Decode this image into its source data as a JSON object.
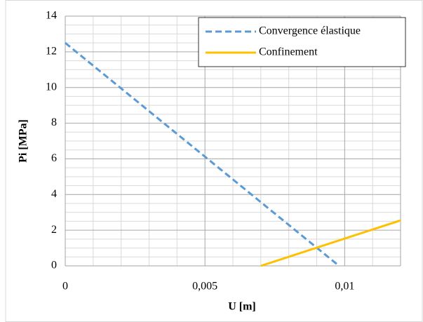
{
  "chart_data": {
    "type": "line",
    "x_label": "U [m]",
    "y_label": "Pi [MPa]",
    "xlim": [
      0,
      0.012
    ],
    "xticks": [
      0,
      {
        "value": 0.005,
        "label": "0,005"
      },
      {
        "value": 0.01,
        "label": "0,01"
      }
    ],
    "ylim": [
      0,
      14
    ],
    "yticks": [
      0,
      2,
      4,
      6,
      8,
      10,
      12,
      14
    ],
    "grid": true,
    "minor_grid": true,
    "legend": "top-right",
    "series": [
      {
        "name": "Convergence élastique",
        "color": "#5b9bd5",
        "dash": true,
        "x": [
          0,
          0.0098
        ],
        "values": [
          12.5,
          0
        ]
      },
      {
        "name": "Confinement",
        "color": "#ffc000",
        "dash": false,
        "x": [
          0.007,
          0.012
        ],
        "values": [
          0,
          2.55
        ]
      }
    ]
  }
}
